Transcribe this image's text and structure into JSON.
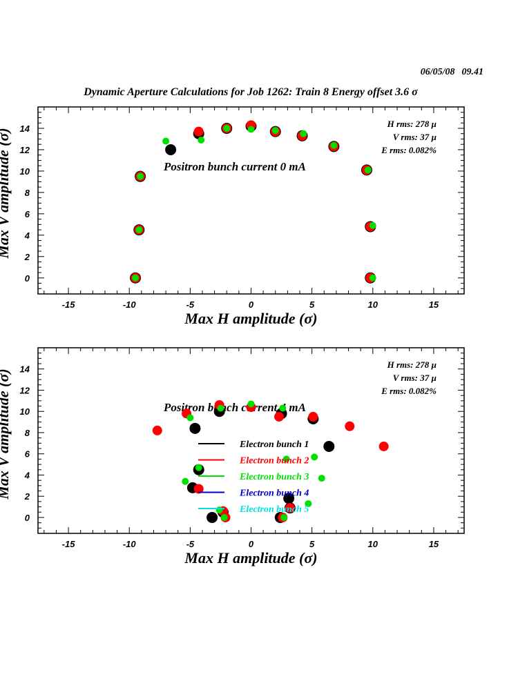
{
  "header": {
    "date": "06/05/08",
    "time": "09.41",
    "title": "Dynamic Aperture Calculations for Job 1262:  Train 8   Energy offset  3.6 σ"
  },
  "colors": {
    "bunch1": "#000000",
    "bunch2": "#ff0000",
    "bunch3": "#00e000",
    "bunch4": "#0000c8",
    "bunch5": "#00e0e0"
  },
  "legend": [
    {
      "label": "Electron bunch 1",
      "color": "#000000"
    },
    {
      "label": "Electron bunch 2",
      "color": "#ff0000"
    },
    {
      "label": "Electron bunch 3",
      "color": "#00e000"
    },
    {
      "label": "Electron bunch 4",
      "color": "#0000c8"
    },
    {
      "label": "Electron bunch 5",
      "color": "#00e0e0"
    }
  ],
  "chart_data": [
    {
      "type": "scatter",
      "panel": "top",
      "subtitle": "Positron bunch current  0 mA",
      "stats": [
        "H rms: 278 µ",
        "V rms: 37 µ",
        "E rms: 0.082%"
      ],
      "xlabel": "Max H amplitude (σ)",
      "ylabel": "Max V amplitude (σ)",
      "xlim": [
        -17.5,
        17.5
      ],
      "ylim": [
        -1.5,
        16
      ],
      "xticks": [
        -15,
        -10,
        -5,
        0,
        5,
        10,
        15
      ],
      "yticks": [
        0,
        2,
        4,
        6,
        8,
        10,
        12,
        14
      ],
      "series": [
        {
          "name": "Electron bunch 1",
          "color": "#000000",
          "size": "large",
          "points": [
            [
              -9.5,
              0
            ],
            [
              -9.2,
              4.5
            ],
            [
              -9.1,
              9.5
            ],
            [
              -6.6,
              12
            ],
            [
              -4.3,
              13.5
            ],
            [
              -2,
              14
            ],
            [
              0,
              14.2
            ],
            [
              2,
              13.7
            ],
            [
              4.2,
              13.3
            ],
            [
              6.8,
              12.3
            ],
            [
              9.5,
              10.1
            ],
            [
              9.8,
              4.8
            ],
            [
              9.8,
              0
            ]
          ]
        },
        {
          "name": "Electron bunch 2",
          "color": "#ff0000",
          "size": "medium",
          "points": [
            [
              -9.5,
              0
            ],
            [
              -9.2,
              4.5
            ],
            [
              -9.1,
              9.5
            ],
            [
              -4.3,
              13.7
            ],
            [
              -2,
              14
            ],
            [
              0,
              14.3
            ],
            [
              2,
              13.7
            ],
            [
              4.2,
              13.3
            ],
            [
              6.8,
              12.3
            ],
            [
              9.5,
              10.1
            ],
            [
              9.8,
              4.8
            ],
            [
              9.8,
              0
            ]
          ]
        },
        {
          "name": "Electron bunch 3",
          "color": "#00e000",
          "size": "small",
          "points": [
            [
              -9.5,
              0
            ],
            [
              -9.2,
              4.5
            ],
            [
              -9.1,
              9.5
            ],
            [
              -7,
              12.8
            ],
            [
              -4.1,
              12.9
            ],
            [
              -2,
              14
            ],
            [
              0,
              13.9
            ],
            [
              2,
              13.8
            ],
            [
              4.3,
              13.5
            ],
            [
              6.8,
              12.4
            ],
            [
              9.6,
              10.1
            ],
            [
              10,
              4.9
            ],
            [
              10,
              0
            ]
          ]
        }
      ]
    },
    {
      "type": "scatter",
      "panel": "bottom",
      "subtitle": "Positron bunch current  4 mA",
      "stats": [
        "H rms: 278 µ",
        "V rms: 37 µ",
        "E rms: 0.082%"
      ],
      "xlabel": "Max H amplitude (σ)",
      "ylabel": "Max V amplitude (σ)",
      "xlim": [
        -17.5,
        17.5
      ],
      "ylim": [
        -1.5,
        16
      ],
      "xticks": [
        -15,
        -10,
        -5,
        0,
        5,
        10,
        15
      ],
      "yticks": [
        0,
        2,
        4,
        6,
        8,
        10,
        12,
        14
      ],
      "series": [
        {
          "name": "Electron bunch 1",
          "color": "#000000",
          "size": "large",
          "points": [
            [
              -3.2,
              0
            ],
            [
              -2.3,
              0.5
            ],
            [
              -4.8,
              2.8
            ],
            [
              -4.3,
              4.5
            ],
            [
              -4.6,
              8.4
            ],
            [
              -2.6,
              10
            ],
            [
              2.5,
              9.8
            ],
            [
              5.1,
              9.3
            ],
            [
              6.4,
              6.7
            ],
            [
              3.1,
              1.8
            ],
            [
              3.2,
              0.9
            ],
            [
              2.4,
              0
            ]
          ]
        },
        {
          "name": "Electron bunch 2",
          "color": "#ff0000",
          "size": "medium",
          "points": [
            [
              -2.1,
              0
            ],
            [
              -2.3,
              0.6
            ],
            [
              -4.3,
              2.7
            ],
            [
              -7.7,
              8.2
            ],
            [
              -5.3,
              9.8
            ],
            [
              -2.6,
              10.6
            ],
            [
              0,
              10.4
            ],
            [
              2.3,
              9.5
            ],
            [
              5.1,
              9.5
            ],
            [
              8.1,
              8.6
            ],
            [
              10.9,
              6.7
            ],
            [
              3.2,
              0.9
            ],
            [
              2.6,
              0
            ]
          ]
        },
        {
          "name": "Electron bunch 3",
          "color": "#00e000",
          "size": "small",
          "points": [
            [
              -2.2,
              0
            ],
            [
              -2.6,
              0.7
            ],
            [
              -5.4,
              3.4
            ],
            [
              -4.3,
              4.7
            ],
            [
              -5,
              9.4
            ],
            [
              -2.5,
              10.3
            ],
            [
              0,
              10.7
            ],
            [
              2.6,
              10.3
            ],
            [
              2.9,
              5.5
            ],
            [
              5.2,
              5.7
            ],
            [
              5.8,
              3.7
            ],
            [
              4.7,
              1.3
            ],
            [
              2.7,
              0
            ]
          ]
        }
      ]
    }
  ]
}
